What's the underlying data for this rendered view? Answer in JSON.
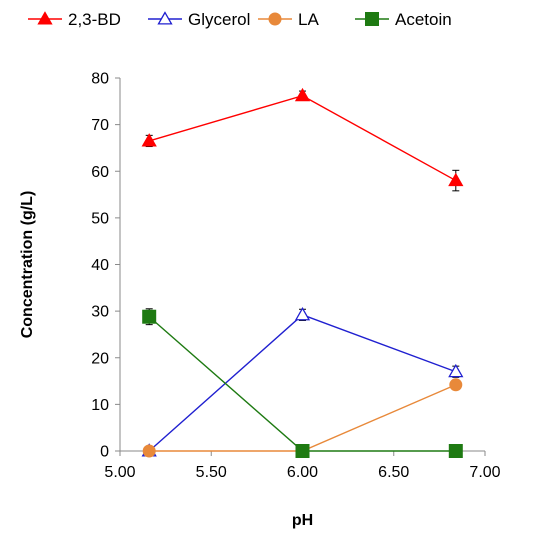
{
  "chart_data": {
    "type": "line",
    "xlabel": "pH",
    "ylabel": "Concentration (g/L)",
    "xlim": [
      5.0,
      7.0
    ],
    "ylim": [
      0,
      80
    ],
    "xticks": [
      "5.00",
      "5.50",
      "6.00",
      "6.50",
      "7.00"
    ],
    "yticks": [
      "0",
      "10",
      "20",
      "30",
      "40",
      "50",
      "60",
      "70",
      "80"
    ],
    "grid": false,
    "legend_position": "top",
    "x": [
      5.16,
      6.0,
      6.84
    ],
    "series": [
      {
        "name": "2,3-BD",
        "values": [
          66.5,
          76.2,
          58.0
        ],
        "errors": [
          1.2,
          1.0,
          2.2
        ],
        "color": "#ff0000",
        "marker": "filled-triangle"
      },
      {
        "name": "Glycerol",
        "values": [
          0.0,
          29.2,
          17.0
        ],
        "errors": [
          0.0,
          1.2,
          1.2
        ],
        "color": "#2020d0",
        "marker": "open-triangle"
      },
      {
        "name": "LA",
        "values": [
          0.0,
          0.0,
          14.2
        ],
        "errors": [
          0.0,
          0.0,
          0.5
        ],
        "color": "#e8893a",
        "marker": "circle"
      },
      {
        "name": "Acetoin",
        "values": [
          28.8,
          0.0,
          0.0
        ],
        "errors": [
          1.7,
          0.0,
          0.0
        ],
        "color": "#1e7a12",
        "marker": "square"
      }
    ]
  }
}
